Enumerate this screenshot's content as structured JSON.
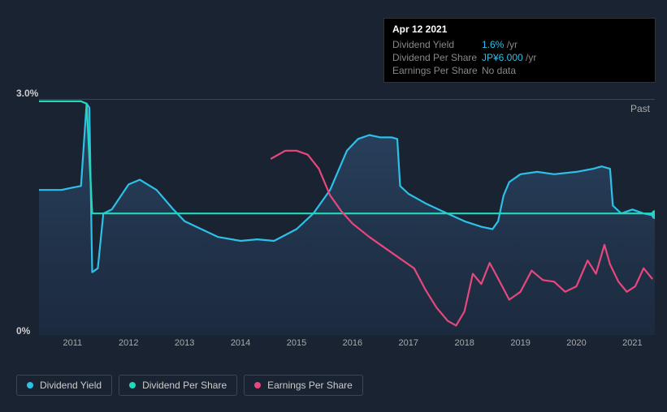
{
  "tooltip": {
    "date": "Apr 12 2021",
    "rows": [
      {
        "label": "Dividend Yield",
        "value": "1.6%",
        "suffix": " /yr",
        "accent": true
      },
      {
        "label": "Dividend Per Share",
        "value": "JP¥6.000",
        "suffix": " /yr",
        "accent": true
      },
      {
        "label": "Earnings Per Share",
        "value": "No data",
        "suffix": "",
        "accent": false
      }
    ]
  },
  "axis": {
    "y_max_label": "3.0%",
    "y_min_label": "0%",
    "y_max": 3.0,
    "y_min": 0,
    "years": [
      "2011",
      "2012",
      "2013",
      "2014",
      "2015",
      "2016",
      "2017",
      "2018",
      "2019",
      "2020",
      "2021"
    ],
    "x_start": 2010.4,
    "x_end": 2021.4,
    "past_label": "Past"
  },
  "style": {
    "bg": "#1a2332",
    "grid_color": "#3a4556",
    "area_fill_gradient_top": "#2d4a6b",
    "area_fill_gradient_bottom": "#1e3048",
    "tooltip_bg": "#000000",
    "text_muted": "#888888",
    "text_normal": "#cccccc",
    "accent_color": "#2dc0e8",
    "font_size_axis": 11,
    "font_size_legend": 12,
    "line_width_main": 2.2,
    "line_width_thin": 1.8
  },
  "series": [
    {
      "name": "Dividend Yield",
      "color": "#2dc0e8",
      "fill": true,
      "end_dot": true,
      "data": [
        [
          2010.4,
          1.85
        ],
        [
          2010.8,
          1.85
        ],
        [
          2011.0,
          1.88
        ],
        [
          2011.15,
          1.9
        ],
        [
          2011.25,
          2.95
        ],
        [
          2011.3,
          2.9
        ],
        [
          2011.35,
          0.8
        ],
        [
          2011.45,
          0.85
        ],
        [
          2011.55,
          1.55
        ],
        [
          2011.7,
          1.6
        ],
        [
          2012.0,
          1.92
        ],
        [
          2012.2,
          1.98
        ],
        [
          2012.5,
          1.85
        ],
        [
          2012.8,
          1.6
        ],
        [
          2013.0,
          1.45
        ],
        [
          2013.3,
          1.35
        ],
        [
          2013.6,
          1.25
        ],
        [
          2014.0,
          1.2
        ],
        [
          2014.3,
          1.22
        ],
        [
          2014.6,
          1.2
        ],
        [
          2015.0,
          1.35
        ],
        [
          2015.3,
          1.55
        ],
        [
          2015.6,
          1.85
        ],
        [
          2015.9,
          2.35
        ],
        [
          2016.1,
          2.5
        ],
        [
          2016.3,
          2.55
        ],
        [
          2016.5,
          2.52
        ],
        [
          2016.7,
          2.52
        ],
        [
          2016.8,
          2.5
        ],
        [
          2016.85,
          1.9
        ],
        [
          2017.0,
          1.8
        ],
        [
          2017.3,
          1.68
        ],
        [
          2017.6,
          1.58
        ],
        [
          2018.0,
          1.45
        ],
        [
          2018.3,
          1.38
        ],
        [
          2018.5,
          1.35
        ],
        [
          2018.6,
          1.45
        ],
        [
          2018.7,
          1.78
        ],
        [
          2018.8,
          1.95
        ],
        [
          2019.0,
          2.05
        ],
        [
          2019.3,
          2.08
        ],
        [
          2019.6,
          2.05
        ],
        [
          2020.0,
          2.08
        ],
        [
          2020.3,
          2.12
        ],
        [
          2020.45,
          2.15
        ],
        [
          2020.6,
          2.12
        ],
        [
          2020.65,
          1.65
        ],
        [
          2020.8,
          1.55
        ],
        [
          2021.0,
          1.6
        ],
        [
          2021.2,
          1.55
        ],
        [
          2021.4,
          1.52
        ]
      ]
    },
    {
      "name": "Dividend Per Share",
      "color": "#23d9b7",
      "fill": false,
      "end_dot": true,
      "data": [
        [
          2010.4,
          2.98
        ],
        [
          2010.9,
          2.98
        ],
        [
          2011.15,
          2.98
        ],
        [
          2011.25,
          2.95
        ],
        [
          2011.35,
          1.55
        ],
        [
          2011.5,
          1.55
        ],
        [
          2012.0,
          1.55
        ],
        [
          2013.0,
          1.55
        ],
        [
          2014.0,
          1.55
        ],
        [
          2015.0,
          1.55
        ],
        [
          2016.0,
          1.55
        ],
        [
          2017.0,
          1.55
        ],
        [
          2018.0,
          1.55
        ],
        [
          2019.0,
          1.55
        ],
        [
          2020.0,
          1.55
        ],
        [
          2021.0,
          1.55
        ],
        [
          2021.4,
          1.55
        ]
      ]
    },
    {
      "name": "Earnings Per Share",
      "color": "#e8477d",
      "fill": false,
      "end_dot": false,
      "data": [
        [
          2014.55,
          2.25
        ],
        [
          2014.8,
          2.35
        ],
        [
          2015.0,
          2.35
        ],
        [
          2015.2,
          2.3
        ],
        [
          2015.4,
          2.12
        ],
        [
          2015.6,
          1.78
        ],
        [
          2015.8,
          1.58
        ],
        [
          2016.0,
          1.42
        ],
        [
          2016.3,
          1.25
        ],
        [
          2016.6,
          1.1
        ],
        [
          2016.9,
          0.95
        ],
        [
          2017.1,
          0.85
        ],
        [
          2017.3,
          0.58
        ],
        [
          2017.5,
          0.35
        ],
        [
          2017.7,
          0.18
        ],
        [
          2017.85,
          0.12
        ],
        [
          2018.0,
          0.3
        ],
        [
          2018.15,
          0.78
        ],
        [
          2018.3,
          0.65
        ],
        [
          2018.45,
          0.92
        ],
        [
          2018.6,
          0.72
        ],
        [
          2018.8,
          0.45
        ],
        [
          2019.0,
          0.55
        ],
        [
          2019.2,
          0.82
        ],
        [
          2019.4,
          0.7
        ],
        [
          2019.6,
          0.68
        ],
        [
          2019.8,
          0.55
        ],
        [
          2020.0,
          0.62
        ],
        [
          2020.2,
          0.95
        ],
        [
          2020.35,
          0.78
        ],
        [
          2020.5,
          1.15
        ],
        [
          2020.6,
          0.9
        ],
        [
          2020.75,
          0.68
        ],
        [
          2020.9,
          0.55
        ],
        [
          2021.05,
          0.62
        ],
        [
          2021.2,
          0.85
        ],
        [
          2021.35,
          0.72
        ]
      ]
    }
  ],
  "legend": [
    {
      "label": "Dividend Yield",
      "color": "#2dc0e8"
    },
    {
      "label": "Dividend Per Share",
      "color": "#23d9b7"
    },
    {
      "label": "Earnings Per Share",
      "color": "#e8477d"
    }
  ]
}
